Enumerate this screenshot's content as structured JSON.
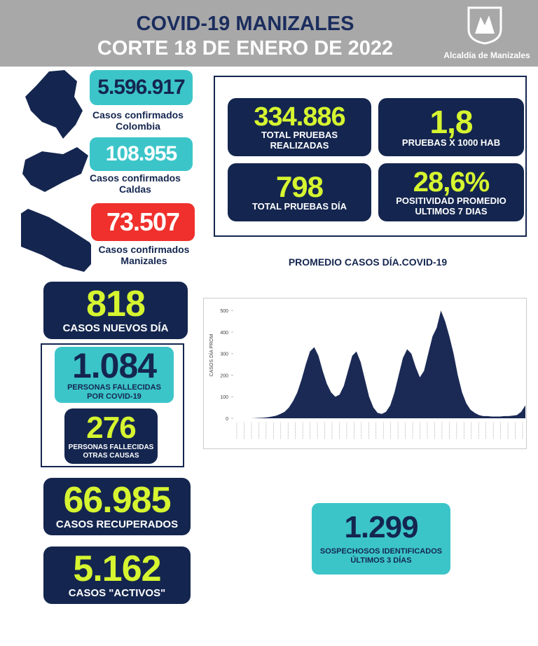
{
  "header": {
    "title": "COVID-19 MANIZALES",
    "subtitle": "CORTE 18 DE ENERO DE 2022",
    "logo_text": "Alcaldía de Manizales"
  },
  "confirmed": [
    {
      "value": "5.596.917",
      "label": "Casos confirmados Colombia"
    },
    {
      "value": "108.955",
      "label": "Casos confirmados Caldas"
    },
    {
      "value": "73.507",
      "label": "Casos confirmados Manizales"
    }
  ],
  "tests": [
    {
      "value": "334.886",
      "label": "TOTAL PRUEBAS REALIZADAS"
    },
    {
      "value": "1,8",
      "label": "PRUEBAS X 1000 HAB"
    },
    {
      "value": "798",
      "label": "TOTAL PRUEBAS DÍA"
    },
    {
      "value": "28,6%",
      "label": "POSITIVIDAD PROMEDIO ULTIMOS 7 DIAS"
    }
  ],
  "new_cases": {
    "value": "818",
    "label": "CASOS NUEVOS DÍA"
  },
  "deaths_covid": {
    "value": "1.084",
    "label": "PERSONAS FALLECIDAS POR COVID-19"
  },
  "deaths_other": {
    "value": "276",
    "label": "PERSONAS FALLECIDAS OTRAS CAUSAS"
  },
  "recovered": {
    "value": "66.985",
    "label": "CASOS RECUPERADOS"
  },
  "active": {
    "value": "5.162",
    "label": "CASOS \"ACTIVOS\""
  },
  "suspects": {
    "value": "1.299",
    "label": "SOSPECHOSOS IDENTIFICADOS ÚLTIMOS 3 DÍAS"
  },
  "chart_data": {
    "type": "area",
    "title": "PROMEDIO CASOS DÍA.COVID-19",
    "y_label": "CASOS DÍA PROM",
    "color": "#1b2a55",
    "ylim": [
      0,
      520
    ],
    "yticks": [
      0,
      100,
      200,
      300,
      400,
      500
    ],
    "values": [
      0,
      0,
      0,
      0,
      0,
      1,
      2,
      3,
      5,
      8,
      12,
      20,
      30,
      50,
      80,
      120,
      180,
      250,
      310,
      330,
      290,
      220,
      160,
      120,
      100,
      110,
      150,
      220,
      290,
      310,
      260,
      180,
      100,
      50,
      25,
      20,
      30,
      60,
      120,
      200,
      280,
      320,
      300,
      240,
      190,
      220,
      300,
      380,
      420,
      500,
      450,
      380,
      300,
      200,
      120,
      70,
      40,
      25,
      15,
      10,
      10,
      8,
      8,
      8,
      10,
      10,
      12,
      15,
      30,
      60
    ]
  }
}
